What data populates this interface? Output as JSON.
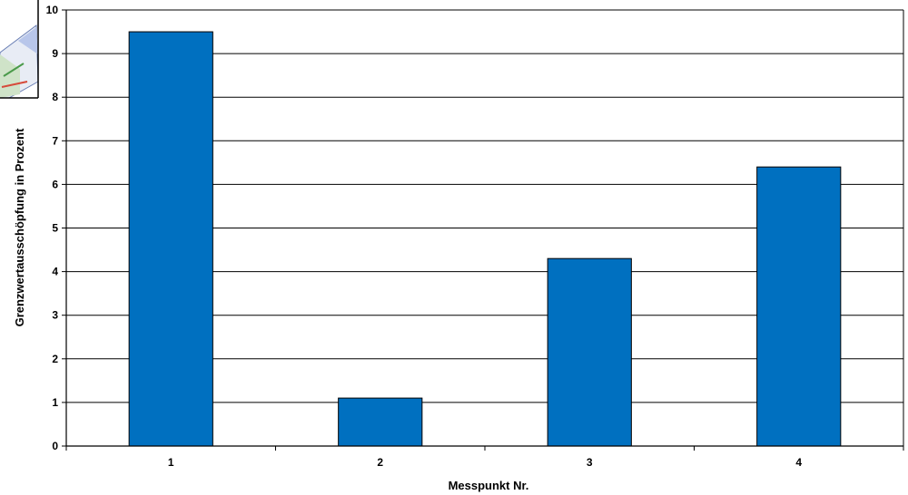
{
  "chart_data": {
    "type": "bar",
    "categories": [
      "1",
      "2",
      "3",
      "4"
    ],
    "values": [
      9.5,
      1.1,
      4.3,
      6.4
    ],
    "title": "",
    "xlabel": "Messpunkt Nr.",
    "ylabel": "Grenzwertausschöpfung  in  Prozent",
    "ylim": [
      0,
      10
    ],
    "yticks": [
      "0",
      "1",
      "2",
      "3",
      "4",
      "5",
      "6",
      "7",
      "8",
      "9",
      "10"
    ],
    "grid": true,
    "bar_color": "#0070C0",
    "legend": "none"
  }
}
